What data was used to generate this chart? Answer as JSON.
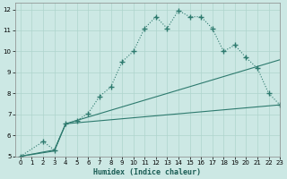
{
  "xlabel": "Humidex (Indice chaleur)",
  "bg_color": "#cce8e4",
  "line_color": "#2d7a6e",
  "grid_color": "#aed4cc",
  "xlim": [
    -0.5,
    23
  ],
  "ylim": [
    5,
    12.3
  ],
  "x_ticks": [
    0,
    1,
    2,
    3,
    4,
    5,
    6,
    7,
    8,
    9,
    10,
    11,
    12,
    13,
    14,
    15,
    16,
    17,
    18,
    19,
    20,
    21,
    22,
    23
  ],
  "y_ticks": [
    5,
    6,
    7,
    8,
    9,
    10,
    11,
    12
  ],
  "series_main": {
    "x": [
      0,
      2,
      3,
      4,
      5,
      6,
      7,
      8,
      9,
      10,
      11,
      12,
      13,
      14,
      15,
      16,
      17,
      18,
      19,
      20,
      21,
      22,
      23
    ],
    "y": [
      5,
      5.7,
      5.3,
      6.55,
      6.7,
      7.05,
      7.85,
      8.3,
      9.5,
      10.0,
      11.1,
      11.65,
      11.1,
      11.95,
      11.65,
      11.65,
      11.1,
      10.0,
      10.3,
      9.7,
      9.2,
      8.0,
      7.45
    ]
  },
  "series_line2": {
    "x": [
      0,
      3,
      4,
      23
    ],
    "y": [
      5,
      5.3,
      6.55,
      9.6
    ]
  },
  "series_line3": {
    "x": [
      0,
      3,
      4,
      23
    ],
    "y": [
      5,
      5.25,
      6.55,
      7.45
    ]
  }
}
